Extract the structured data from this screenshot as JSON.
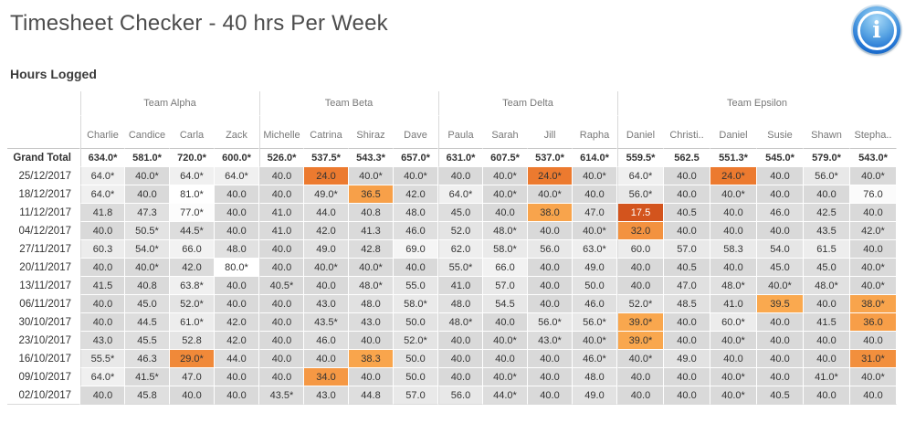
{
  "header": {
    "title": "Timesheet Checker - 40 hrs Per Week",
    "subtitle": "Hours Logged",
    "info_glyph": "i"
  },
  "colors": {
    "cell_default_gray": "#D9D9D9",
    "cell_high_white": "#FFFFFF",
    "cell_low_mild_orange": "#F9A74E",
    "cell_low_severe_orange": "#D3541D",
    "info_button_blue": "#1E71D2",
    "header_text": "#787878",
    "value_text": "#333333"
  },
  "chart_data": {
    "type": "table",
    "title": "Hours Logged",
    "corner_label": "",
    "groups": [
      {
        "name": "Team Alpha",
        "members": [
          "Charlie",
          "Candice",
          "Carla",
          "Zack"
        ]
      },
      {
        "name": "Team Beta",
        "members": [
          "Michelle",
          "Catrina",
          "Shiraz",
          "Dave"
        ]
      },
      {
        "name": "Team Delta",
        "members": [
          "Paula",
          "Sarah",
          "Jill",
          "Rapha"
        ]
      },
      {
        "name": "Team Epsilon",
        "members": [
          "Daniel",
          "Christi..",
          "Daniel",
          "Susie",
          "Shawn",
          "Stepha.."
        ]
      }
    ],
    "rows": [
      {
        "label": "Grand Total",
        "values": [
          "634.0*",
          "581.0*",
          "720.0*",
          "600.0*",
          "526.0*",
          "537.5*",
          "543.3*",
          "657.0*",
          "631.0*",
          "607.5*",
          "537.0*",
          "614.0*",
          "559.5*",
          "562.5",
          "551.3*",
          "545.0*",
          "579.0*",
          "543.0*"
        ]
      },
      {
        "label": "25/12/2017",
        "values": [
          "64.0*",
          "40.0*",
          "64.0*",
          "64.0*",
          "40.0",
          "24.0",
          "40.0*",
          "40.0*",
          "40.0",
          "40.0*",
          "24.0*",
          "40.0*",
          "64.0*",
          "40.0",
          "24.0*",
          "40.0",
          "56.0*",
          "40.0*"
        ]
      },
      {
        "label": "18/12/2017",
        "values": [
          "64.0*",
          "40.0",
          "81.0*",
          "40.0",
          "40.0",
          "49.0*",
          "36.5",
          "42.0",
          "64.0*",
          "40.0*",
          "40.0*",
          "40.0",
          "56.0*",
          "40.0",
          "40.0*",
          "40.0",
          "40.0",
          "76.0"
        ]
      },
      {
        "label": "11/12/2017",
        "values": [
          "41.8",
          "47.3",
          "77.0*",
          "40.0",
          "41.0",
          "44.0",
          "40.8",
          "48.0",
          "45.0",
          "40.0",
          "38.0",
          "47.0",
          "17.5",
          "40.5",
          "40.0",
          "46.0",
          "42.5",
          "40.0"
        ]
      },
      {
        "label": "04/12/2017",
        "values": [
          "40.0",
          "50.5*",
          "44.5*",
          "40.0",
          "41.0",
          "42.0",
          "41.3",
          "46.0",
          "52.0",
          "48.0*",
          "40.0",
          "40.0*",
          "32.0",
          "40.0",
          "40.0",
          "40.0",
          "43.5",
          "42.0*"
        ]
      },
      {
        "label": "27/11/2017",
        "values": [
          "60.3",
          "54.0*",
          "66.0",
          "48.0",
          "40.0",
          "49.0",
          "42.8",
          "69.0",
          "62.0",
          "58.0*",
          "56.0",
          "63.0*",
          "60.0",
          "57.0",
          "58.3",
          "54.0",
          "61.5",
          "40.0"
        ]
      },
      {
        "label": "20/11/2017",
        "values": [
          "40.0",
          "40.0*",
          "42.0",
          "80.0*",
          "40.0",
          "40.0*",
          "40.0*",
          "40.0",
          "55.0*",
          "66.0",
          "40.0",
          "49.0",
          "40.0",
          "40.5",
          "40.0",
          "45.0",
          "45.0",
          "40.0*"
        ]
      },
      {
        "label": "13/11/2017",
        "values": [
          "41.5",
          "40.8",
          "63.8*",
          "40.0",
          "40.5*",
          "40.0",
          "48.0*",
          "55.0",
          "41.0",
          "57.0",
          "40.0",
          "50.0",
          "40.0",
          "47.0",
          "48.0*",
          "40.0*",
          "48.0*",
          "40.0*"
        ]
      },
      {
        "label": "06/11/2017",
        "values": [
          "40.0",
          "45.0",
          "52.0*",
          "40.0",
          "40.0",
          "43.0",
          "48.0",
          "58.0*",
          "48.0",
          "54.5",
          "40.0",
          "46.0",
          "52.0*",
          "48.5",
          "41.0",
          "39.5",
          "40.0",
          "38.0*"
        ]
      },
      {
        "label": "30/10/2017",
        "values": [
          "40.0",
          "44.5",
          "61.0*",
          "42.0",
          "40.0",
          "43.5*",
          "43.0",
          "50.0",
          "48.0*",
          "40.0",
          "56.0*",
          "56.0*",
          "39.0*",
          "40.0",
          "60.0*",
          "40.0",
          "41.5",
          "36.0"
        ]
      },
      {
        "label": "23/10/2017",
        "values": [
          "43.0",
          "45.5",
          "52.8",
          "42.0",
          "40.0",
          "46.0",
          "40.0",
          "52.0*",
          "40.0",
          "40.0*",
          "43.0*",
          "40.0*",
          "39.0*",
          "40.0",
          "40.0*",
          "40.0",
          "40.0",
          "40.0"
        ]
      },
      {
        "label": "16/10/2017",
        "values": [
          "55.5*",
          "46.3",
          "29.0*",
          "44.0",
          "40.0",
          "40.0",
          "38.3",
          "50.0",
          "40.0",
          "40.0",
          "40.0",
          "46.0*",
          "40.0*",
          "49.0",
          "40.0",
          "40.0",
          "40.0",
          "31.0*"
        ]
      },
      {
        "label": "09/10/2017",
        "values": [
          "64.0*",
          "41.5*",
          "47.0",
          "40.0",
          "40.0",
          "34.0",
          "40.0",
          "50.0",
          "40.0",
          "40.0*",
          "40.0",
          "48.0",
          "40.0",
          "40.0",
          "40.0*",
          "40.0",
          "41.0*",
          "40.0*"
        ]
      },
      {
        "label": "02/10/2017",
        "values": [
          "40.0",
          "45.8",
          "40.0",
          "40.0",
          "43.5*",
          "43.0",
          "44.8",
          "57.0",
          "56.0",
          "44.0*",
          "40.0",
          "49.0",
          "40.0",
          "40.0",
          "40.0*",
          "40.5",
          "40.0",
          "40.0"
        ]
      }
    ]
  }
}
